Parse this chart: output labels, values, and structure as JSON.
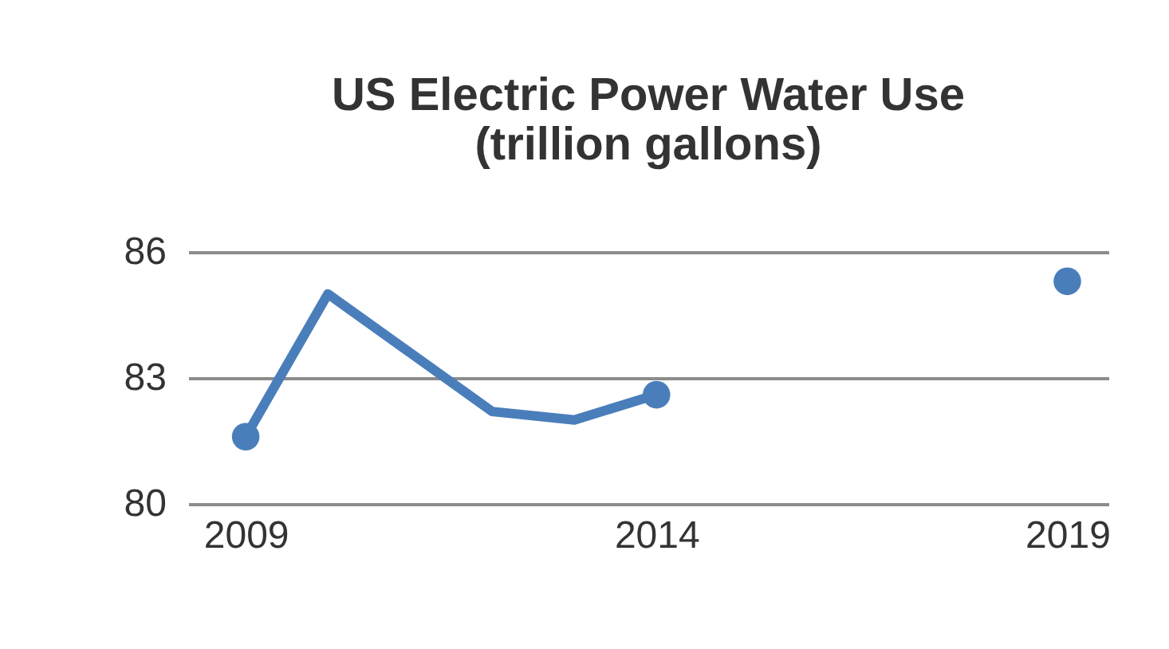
{
  "chart_data": {
    "type": "line",
    "title": [
      "US Electric Power Water Use",
      "(trillion gallons)"
    ],
    "series": [
      {
        "color": "#4a7ebb",
        "x": [
          2009,
          2010,
          2012,
          2013,
          2014
        ],
        "values": [
          81.6,
          85.0,
          82.2,
          82.0,
          82.6
        ],
        "marker": "none"
      },
      {
        "type": "scatter",
        "color": "#4a7ebb",
        "x": [
          2009,
          2014,
          2019
        ],
        "values": [
          81.6,
          82.6,
          85.3
        ],
        "marker": "circle"
      }
    ],
    "xlim": [
      2008.3,
      2019.5
    ],
    "xticks": [
      2009,
      2014,
      2019
    ],
    "ylim": [
      80,
      86
    ],
    "yticks": [
      80,
      83,
      86
    ],
    "grid": "y"
  }
}
